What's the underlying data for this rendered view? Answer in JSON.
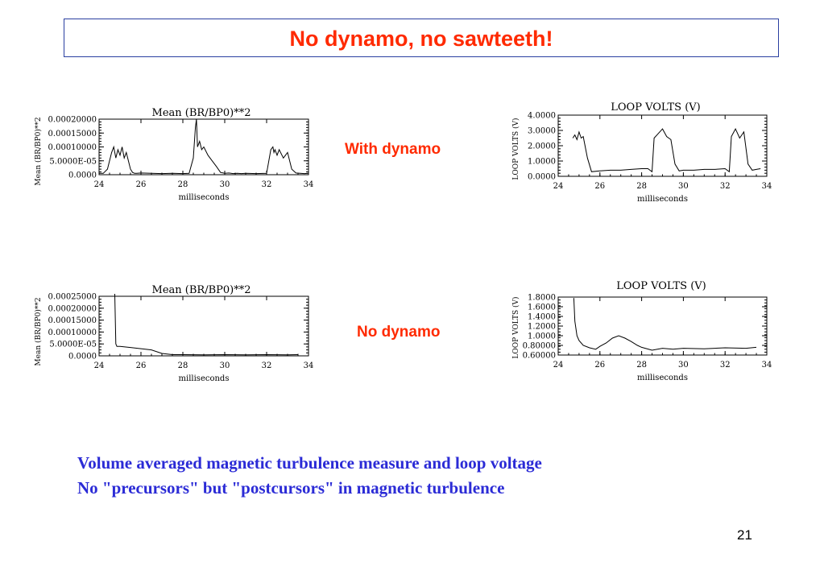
{
  "slide": {
    "title": "No dynamo, no sawteeth!",
    "label_with": "With dynamo",
    "label_without": "No dynamo",
    "caption_line1": "Volume averaged magnetic turbulence measure and loop voltage",
    "caption_line2": "No \"precursors\" but \"postcursors\" in magnetic turbulence",
    "page_number": "21",
    "title_color": "#ff2a00",
    "caption_color": "#2b2bd6"
  },
  "chart_data": [
    {
      "id": "turb-with",
      "type": "line",
      "title": "Mean (BR/BP0)**2",
      "xlabel": "milliseconds",
      "ylabel": "Mean (BR/BP0)**2",
      "xlim": [
        24,
        34
      ],
      "ylim": [
        0,
        0.0002
      ],
      "xticks": [
        "24",
        "26",
        "28",
        "30",
        "32",
        "34"
      ],
      "yticks": [
        {
          "v": 0.0002,
          "label": "0.00020000"
        },
        {
          "v": 0.00015,
          "label": "0.00015000"
        },
        {
          "v": 0.0001,
          "label": "0.00010000"
        },
        {
          "v": 5e-05,
          "label": "5.0000E-05"
        },
        {
          "v": 0.0,
          "label": "0.0000"
        }
      ],
      "x": [
        24,
        24.2,
        24.4,
        24.6,
        24.7,
        24.8,
        24.9,
        25.0,
        25.1,
        25.2,
        25.3,
        25.4,
        25.5,
        25.6,
        25.7,
        25.8,
        26.0,
        26.5,
        27.0,
        27.5,
        28.0,
        28.3,
        28.5,
        28.6,
        28.65,
        28.7,
        28.8,
        28.9,
        29.0,
        29.2,
        29.4,
        29.6,
        29.8,
        30.0,
        30.2,
        30.4,
        30.6,
        30.8,
        31.0,
        31.5,
        32.0,
        32.2,
        32.3,
        32.35,
        32.4,
        32.5,
        32.6,
        32.8,
        33.0,
        33.1,
        33.2,
        33.4,
        33.6,
        33.8,
        34.0
      ],
      "y": [
        5e-06,
        5e-06,
        2e-05,
        8e-05,
        0.0001,
        6e-05,
        9e-05,
        7e-05,
        0.0001,
        6e-05,
        8e-05,
        5e-05,
        2e-05,
        8e-06,
        5e-06,
        5e-06,
        6e-06,
        5e-06,
        4e-06,
        5e-06,
        4e-06,
        5e-06,
        6e-05,
        0.00017,
        0.0002,
        0.0001,
        0.00012,
        9e-05,
        0.0001,
        7e-05,
        5e-05,
        3e-05,
        8e-06,
        5e-06,
        6e-06,
        4e-06,
        5e-06,
        4e-06,
        5e-06,
        4e-06,
        5e-06,
        9e-05,
        0.0001,
        8e-05,
        9e-05,
        7e-05,
        9e-05,
        6e-05,
        8e-05,
        5e-05,
        2e-05,
        6e-06,
        5e-06,
        4e-06,
        5e-06
      ]
    },
    {
      "id": "volts-with",
      "type": "line",
      "title": "LOOP VOLTS (V)",
      "xlabel": "milliseconds",
      "ylabel": "LOOP VOLTS (V)",
      "xlim": [
        24,
        34
      ],
      "ylim": [
        0,
        4
      ],
      "xticks": [
        "24",
        "26",
        "28",
        "30",
        "32",
        "34"
      ],
      "yticks": [
        {
          "v": 4.0,
          "label": "4.0000"
        },
        {
          "v": 3.0,
          "label": "3.0000"
        },
        {
          "v": 2.0,
          "label": "2.0000"
        },
        {
          "v": 1.0,
          "label": "1.0000"
        },
        {
          "v": 0.0,
          "label": "0.0000"
        }
      ],
      "x": [
        24.7,
        24.8,
        24.9,
        25.0,
        25.1,
        25.2,
        25.4,
        25.6,
        26.0,
        26.5,
        27.0,
        27.5,
        28.0,
        28.3,
        28.5,
        28.6,
        28.8,
        29.0,
        29.2,
        29.4,
        29.6,
        29.8,
        30.0,
        30.5,
        31.0,
        31.5,
        32.0,
        32.2,
        32.3,
        32.5,
        32.7,
        32.9,
        33.1,
        33.3,
        33.5,
        33.7
      ],
      "y": [
        2.5,
        2.7,
        2.4,
        2.9,
        2.5,
        2.6,
        1.2,
        0.3,
        0.35,
        0.4,
        0.4,
        0.45,
        0.5,
        0.5,
        0.3,
        2.5,
        2.8,
        3.1,
        2.6,
        2.4,
        0.8,
        0.35,
        0.4,
        0.4,
        0.45,
        0.45,
        0.5,
        0.3,
        2.6,
        3.1,
        2.5,
        2.9,
        0.8,
        0.4,
        0.45,
        0.5
      ]
    },
    {
      "id": "turb-without",
      "type": "line",
      "title": "Mean (BR/BP0)**2",
      "xlabel": "milliseconds",
      "ylabel": "Mean (BR/BP0)**2",
      "xlim": [
        24,
        34
      ],
      "ylim": [
        0,
        0.00025
      ],
      "xticks": [
        "24",
        "26",
        "28",
        "30",
        "32",
        "34"
      ],
      "yticks": [
        {
          "v": 0.00025,
          "label": "0.00025000"
        },
        {
          "v": 0.0002,
          "label": "0.00020000"
        },
        {
          "v": 0.00015,
          "label": "0.00015000"
        },
        {
          "v": 0.0001,
          "label": "0.00010000"
        },
        {
          "v": 5e-05,
          "label": "5.0000E-05"
        },
        {
          "v": 0.0,
          "label": "0.0000"
        }
      ],
      "x": [
        24.75,
        24.8,
        24.85,
        24.9,
        25.0,
        25.5,
        26.0,
        26.5,
        27.0,
        27.5,
        28.0,
        29.0,
        30.0,
        31.0,
        32.0,
        33.0,
        33.5
      ],
      "y": [
        0.00026,
        5e-05,
        4e-05,
        4e-05,
        4e-05,
        3.5e-05,
        3e-05,
        2.5e-05,
        1e-05,
        5e-06,
        5e-06,
        4e-06,
        5e-06,
        4e-06,
        5e-06,
        4e-06,
        5e-06
      ]
    },
    {
      "id": "volts-without",
      "type": "line",
      "title": "LOOP VOLTS (V)",
      "xlabel": "milliseconds",
      "ylabel": "LOOP VOLTS (V)",
      "xlim": [
        24,
        34
      ],
      "ylim": [
        0.6,
        1.8
      ],
      "xticks": [
        "24",
        "26",
        "28",
        "30",
        "32",
        "34"
      ],
      "yticks": [
        {
          "v": 1.8,
          "label": "1.8000"
        },
        {
          "v": 1.6,
          "label": "1.6000"
        },
        {
          "v": 1.4,
          "label": "1.4000"
        },
        {
          "v": 1.2,
          "label": "1.2000"
        },
        {
          "v": 1.0,
          "label": "1.0000"
        },
        {
          "v": 0.8,
          "label": "0.80000"
        },
        {
          "v": 0.6,
          "label": "0.60000"
        }
      ],
      "x": [
        24.75,
        24.8,
        24.9,
        25.0,
        25.2,
        25.5,
        25.8,
        26.0,
        26.3,
        26.6,
        26.9,
        27.2,
        27.5,
        27.8,
        28.0,
        28.5,
        29.0,
        29.5,
        30.0,
        31.0,
        32.0,
        33.0,
        33.5
      ],
      "y": [
        1.78,
        1.3,
        1.0,
        0.9,
        0.8,
        0.75,
        0.72,
        0.78,
        0.85,
        0.95,
        1.0,
        0.95,
        0.88,
        0.8,
        0.76,
        0.7,
        0.74,
        0.72,
        0.74,
        0.73,
        0.75,
        0.74,
        0.76
      ]
    }
  ]
}
